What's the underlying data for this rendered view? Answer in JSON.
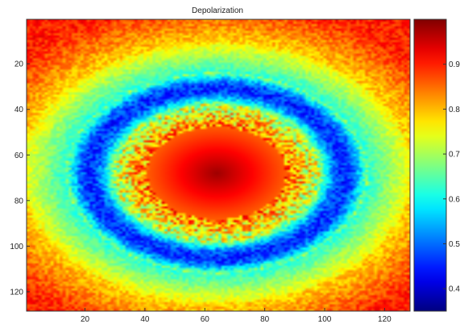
{
  "chart_data": {
    "type": "heatmap",
    "title": "Depolarization",
    "xlabel": "",
    "ylabel": "",
    "x_range": [
      1,
      128
    ],
    "y_range": [
      1,
      128
    ],
    "y_reversed": true,
    "x_ticks": [
      20,
      40,
      60,
      80,
      100,
      120
    ],
    "x_tick_labels": [
      "20",
      "40",
      "60",
      "80",
      "100",
      "120"
    ],
    "y_ticks": [
      20,
      40,
      60,
      80,
      100,
      120
    ],
    "y_tick_labels": [
      "20",
      "40",
      "60",
      "80",
      "100",
      "120"
    ],
    "colormap": "jet",
    "colorbar": {
      "range": [
        0.35,
        1.0
      ],
      "ticks": [
        0.4,
        0.5,
        0.6,
        0.7,
        0.8,
        0.9
      ],
      "tick_labels": [
        "0.4",
        "0.5",
        "0.6",
        "0.7",
        "0.8",
        "0.9"
      ]
    },
    "pattern": {
      "center": [
        64,
        68
      ],
      "center_value": 0.98,
      "inner_red_value": 0.85,
      "low_ring_value": 0.5,
      "outer_value": 0.88
    }
  }
}
